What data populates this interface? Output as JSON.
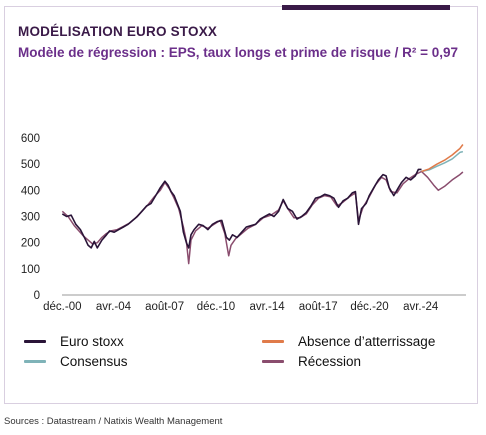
{
  "header": {
    "title": "MODÉLISATION EURO STOXX",
    "subtitle": "Modèle de régression : EPS, taux longs et prime de risque / R² = 0,97"
  },
  "footer": {
    "source": "Sources : Datastream / Natixis Wealth Management"
  },
  "colors": {
    "euro_stoxx": "#2a1438",
    "consensus": "#7fb3b8",
    "absence": "#e07b4a",
    "recession": "#8a4d6e",
    "accent": "#3a1a48"
  },
  "chart_data": {
    "type": "line",
    "title": "MODÉLISATION EURO STOXX",
    "subtitle": "Modèle de régression : EPS, taux longs et prime de risque / R² = 0,97",
    "xlabel": "",
    "ylabel": "",
    "ylim": [
      0,
      600
    ],
    "yticks": [
      "0",
      "100",
      "200",
      "300",
      "400",
      "500",
      "600"
    ],
    "xticks": [
      {
        "label": "déc.-00",
        "t": 2000.92
      },
      {
        "label": "avr.-04",
        "t": 2004.25
      },
      {
        "label": "août-07",
        "t": 2007.58
      },
      {
        "label": "déc.-10",
        "t": 2010.92
      },
      {
        "label": "avr.-14",
        "t": 2014.25
      },
      {
        "label": "août-17",
        "t": 2017.58
      },
      {
        "label": "déc.-20",
        "t": 2020.92
      },
      {
        "label": "avr.-24",
        "t": 2024.25
      }
    ],
    "xlim": [
      2000.9,
      2027.2
    ],
    "legend_placement": "bottom",
    "grid": false,
    "series": [
      {
        "name": "Euro stoxx",
        "color": "#2a1438",
        "points": [
          [
            2000.92,
            310
          ],
          [
            2001.2,
            300
          ],
          [
            2001.5,
            305
          ],
          [
            2001.8,
            270
          ],
          [
            2002.1,
            250
          ],
          [
            2002.4,
            215
          ],
          [
            2002.6,
            190
          ],
          [
            2002.8,
            180
          ],
          [
            2003.0,
            205
          ],
          [
            2003.2,
            180
          ],
          [
            2003.5,
            210
          ],
          [
            2003.8,
            230
          ],
          [
            2004.0,
            245
          ],
          [
            2004.3,
            240
          ],
          [
            2004.6,
            250
          ],
          [
            2004.9,
            260
          ],
          [
            2005.2,
            270
          ],
          [
            2005.5,
            285
          ],
          [
            2005.8,
            300
          ],
          [
            2006.1,
            320
          ],
          [
            2006.4,
            340
          ],
          [
            2006.7,
            350
          ],
          [
            2007.0,
            380
          ],
          [
            2007.3,
            410
          ],
          [
            2007.6,
            435
          ],
          [
            2007.8,
            420
          ],
          [
            2008.0,
            395
          ],
          [
            2008.2,
            380
          ],
          [
            2008.4,
            350
          ],
          [
            2008.6,
            320
          ],
          [
            2008.8,
            240
          ],
          [
            2009.0,
            200
          ],
          [
            2009.15,
            180
          ],
          [
            2009.3,
            230
          ],
          [
            2009.5,
            250
          ],
          [
            2009.8,
            270
          ],
          [
            2010.1,
            265
          ],
          [
            2010.4,
            250
          ],
          [
            2010.7,
            270
          ],
          [
            2011.0,
            280
          ],
          [
            2011.3,
            285
          ],
          [
            2011.6,
            220
          ],
          [
            2011.8,
            210
          ],
          [
            2012.0,
            230
          ],
          [
            2012.3,
            220
          ],
          [
            2012.6,
            240
          ],
          [
            2012.9,
            260
          ],
          [
            2013.2,
            265
          ],
          [
            2013.5,
            270
          ],
          [
            2013.8,
            290
          ],
          [
            2014.1,
            300
          ],
          [
            2014.4,
            310
          ],
          [
            2014.7,
            300
          ],
          [
            2015.0,
            320
          ],
          [
            2015.3,
            365
          ],
          [
            2015.6,
            330
          ],
          [
            2015.9,
            320
          ],
          [
            2016.2,
            290
          ],
          [
            2016.5,
            300
          ],
          [
            2016.8,
            315
          ],
          [
            2017.1,
            340
          ],
          [
            2017.4,
            370
          ],
          [
            2017.7,
            375
          ],
          [
            2018.0,
            385
          ],
          [
            2018.3,
            380
          ],
          [
            2018.6,
            370
          ],
          [
            2018.9,
            335
          ],
          [
            2019.2,
            360
          ],
          [
            2019.5,
            370
          ],
          [
            2019.8,
            390
          ],
          [
            2020.0,
            395
          ],
          [
            2020.2,
            270
          ],
          [
            2020.4,
            330
          ],
          [
            2020.7,
            350
          ],
          [
            2020.9,
            380
          ],
          [
            2021.2,
            410
          ],
          [
            2021.5,
            440
          ],
          [
            2021.8,
            460
          ],
          [
            2022.0,
            455
          ],
          [
            2022.2,
            410
          ],
          [
            2022.5,
            380
          ],
          [
            2022.8,
            410
          ],
          [
            2023.0,
            430
          ],
          [
            2023.3,
            450
          ],
          [
            2023.6,
            440
          ],
          [
            2023.9,
            455
          ],
          [
            2024.1,
            480
          ],
          [
            2024.3,
            480
          ]
        ]
      },
      {
        "name": "Consensus",
        "color": "#7fb3b8",
        "points": [
          [
            2024.3,
            472
          ],
          [
            2024.8,
            478
          ],
          [
            2025.3,
            492
          ],
          [
            2025.8,
            505
          ],
          [
            2026.3,
            520
          ],
          [
            2026.8,
            545
          ],
          [
            2027.0,
            548
          ]
        ]
      },
      {
        "name": "Absence d’atterrissage",
        "color": "#e07b4a",
        "points": [
          [
            2024.3,
            472
          ],
          [
            2024.8,
            482
          ],
          [
            2025.3,
            500
          ],
          [
            2025.8,
            515
          ],
          [
            2026.3,
            535
          ],
          [
            2026.8,
            560
          ],
          [
            2027.0,
            575
          ]
        ]
      },
      {
        "name": "Récession",
        "color": "#8a4d6e",
        "points": [
          [
            2000.92,
            320
          ],
          [
            2001.3,
            300
          ],
          [
            2001.7,
            265
          ],
          [
            2002.0,
            245
          ],
          [
            2002.3,
            225
          ],
          [
            2002.6,
            210
          ],
          [
            2002.9,
            195
          ],
          [
            2003.2,
            200
          ],
          [
            2003.5,
            220
          ],
          [
            2003.8,
            235
          ],
          [
            2004.1,
            245
          ],
          [
            2004.5,
            250
          ],
          [
            2004.9,
            262
          ],
          [
            2005.3,
            275
          ],
          [
            2005.7,
            295
          ],
          [
            2006.1,
            320
          ],
          [
            2006.5,
            345
          ],
          [
            2006.9,
            375
          ],
          [
            2007.3,
            400
          ],
          [
            2007.6,
            430
          ],
          [
            2007.9,
            405
          ],
          [
            2008.2,
            370
          ],
          [
            2008.5,
            330
          ],
          [
            2008.8,
            260
          ],
          [
            2009.0,
            205
          ],
          [
            2009.15,
            120
          ],
          [
            2009.3,
            210
          ],
          [
            2009.6,
            245
          ],
          [
            2010.0,
            265
          ],
          [
            2010.4,
            255
          ],
          [
            2010.8,
            270
          ],
          [
            2011.2,
            285
          ],
          [
            2011.5,
            235
          ],
          [
            2011.75,
            150
          ],
          [
            2011.9,
            190
          ],
          [
            2012.2,
            215
          ],
          [
            2012.6,
            235
          ],
          [
            2013.0,
            255
          ],
          [
            2013.5,
            270
          ],
          [
            2014.0,
            295
          ],
          [
            2014.5,
            305
          ],
          [
            2015.0,
            325
          ],
          [
            2015.3,
            360
          ],
          [
            2015.6,
            330
          ],
          [
            2016.0,
            295
          ],
          [
            2016.4,
            295
          ],
          [
            2016.8,
            310
          ],
          [
            2017.2,
            345
          ],
          [
            2017.6,
            370
          ],
          [
            2018.0,
            380
          ],
          [
            2018.4,
            375
          ],
          [
            2018.8,
            340
          ],
          [
            2019.2,
            355
          ],
          [
            2019.6,
            375
          ],
          [
            2020.0,
            390
          ],
          [
            2020.2,
            285
          ],
          [
            2020.5,
            335
          ],
          [
            2020.9,
            375
          ],
          [
            2021.3,
            420
          ],
          [
            2021.7,
            450
          ],
          [
            2022.0,
            440
          ],
          [
            2022.3,
            395
          ],
          [
            2022.7,
            390
          ],
          [
            2023.1,
            425
          ],
          [
            2023.5,
            445
          ],
          [
            2023.9,
            460
          ],
          [
            2024.3,
            472
          ],
          [
            2024.7,
            450
          ],
          [
            2025.1,
            420
          ],
          [
            2025.4,
            400
          ],
          [
            2025.8,
            415
          ],
          [
            2026.3,
            440
          ],
          [
            2026.8,
            460
          ],
          [
            2027.0,
            470
          ]
        ]
      }
    ]
  }
}
